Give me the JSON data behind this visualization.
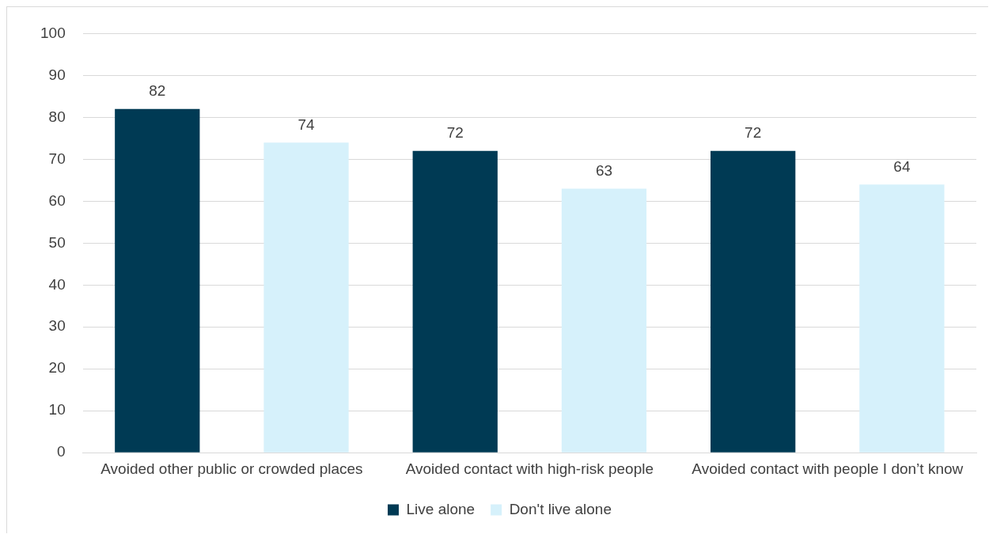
{
  "chart_data": {
    "type": "bar",
    "categories": [
      "Avoided other public or crowded places",
      "Avoided contact with high-risk people",
      "Avoided contact with people I don’t know"
    ],
    "series": [
      {
        "name": "Live alone",
        "color": "#003a54",
        "values": [
          82,
          72,
          72
        ]
      },
      {
        "name": "Don't live alone",
        "color": "#d6f1fb",
        "values": [
          74,
          63,
          64
        ]
      }
    ],
    "ylim": [
      0,
      100
    ],
    "yticks": [
      0,
      10,
      20,
      30,
      40,
      50,
      60,
      70,
      80,
      90,
      100
    ],
    "grid": "y",
    "legend": "bottom",
    "data_labels": true
  }
}
